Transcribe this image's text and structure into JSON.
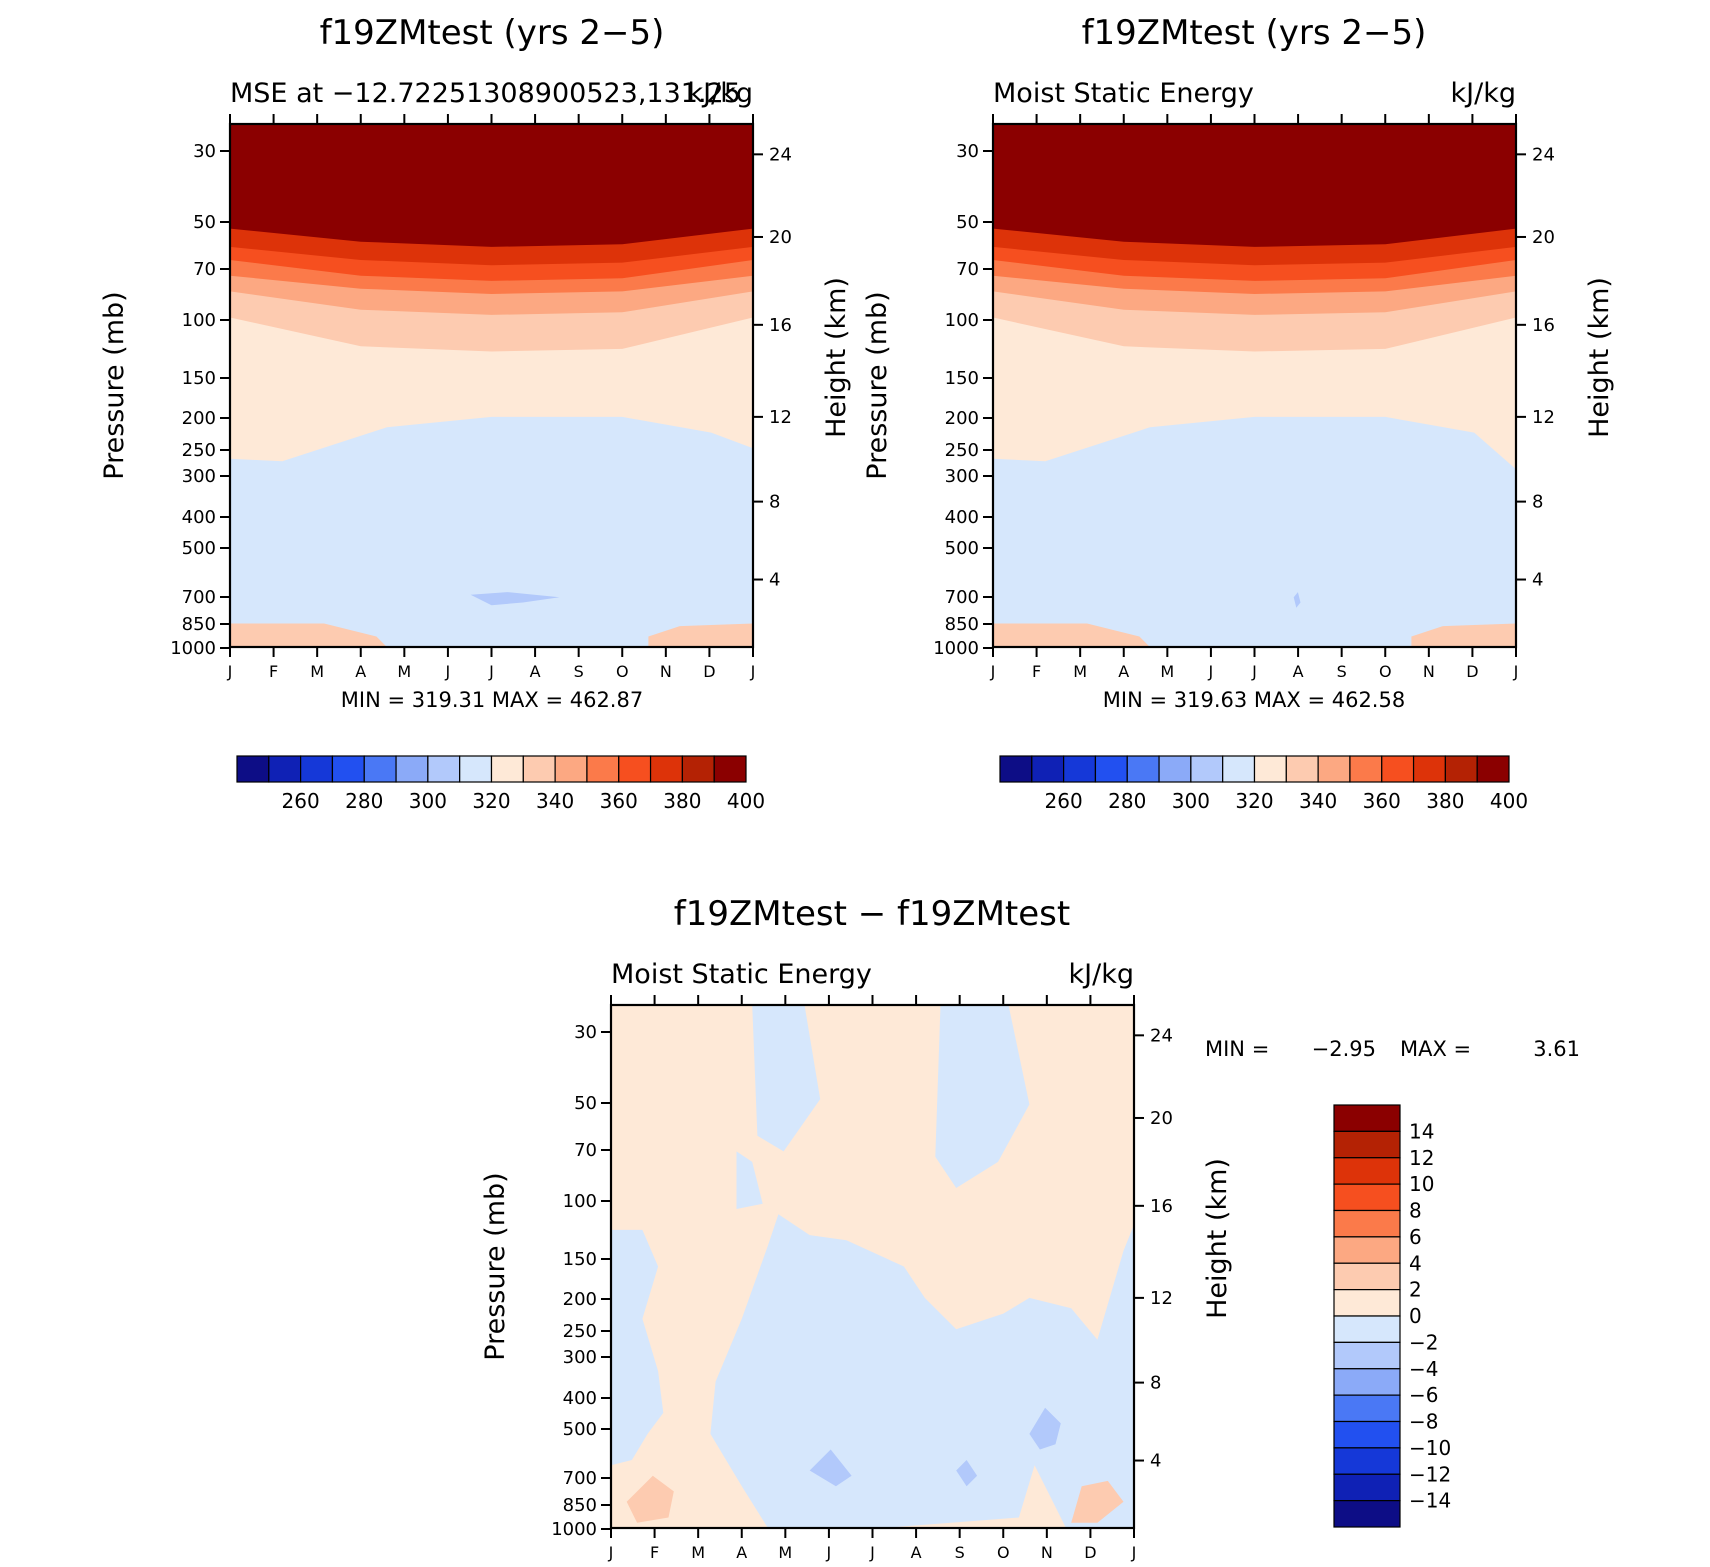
{
  "chart_data": [
    {
      "type": "heatmap",
      "title": "f19ZMtest (yrs 2−5)",
      "subtitle_left": "MSE at −12.72251308900523,131.25",
      "subtitle_right": "kJ/kg",
      "xlabel": "",
      "ylabel": "Pressure (mb)",
      "ylabel_right": "Height (km)",
      "x_ticks": [
        "J",
        "F",
        "M",
        "A",
        "M",
        "J",
        "J",
        "A",
        "S",
        "O",
        "N",
        "D",
        "J"
      ],
      "y_ticks": [
        "30",
        "50",
        "70",
        "100",
        "150",
        "200",
        "250",
        "300",
        "400",
        "500",
        "700",
        "850",
        "1000"
      ],
      "y_ticks_right": [
        "24",
        "20",
        "16",
        "12",
        "8",
        "4"
      ],
      "y_scale": "log",
      "ylim": [
        1000,
        25
      ],
      "min_max_text": "MIN = 319.31 MAX = 462.87",
      "colorbar": {
        "orientation": "horizontal",
        "labels": [
          "260",
          "280",
          "300",
          "320",
          "340",
          "360",
          "380",
          "400"
        ],
        "colors": [
          "#0d0d86",
          "#0f21b5",
          "#1538d8",
          "#2250f0",
          "#4a78f5",
          "#8baaf8",
          "#b2c9fb",
          "#d6e7fc",
          "#fee9d7",
          "#fdcbb0",
          "#fca882",
          "#fb7a4a",
          "#f64f1f",
          "#dd3309",
          "#b42204",
          "#8b0000"
        ]
      },
      "values": "layered kJ/kg field: 320-330 mid-troposphere (Apr-Oct), 330-340 lower/upper troposphere, rising through 400+ above ~50 mb"
    },
    {
      "type": "heatmap",
      "title": "f19ZMtest (yrs 2−5)",
      "subtitle_left": "Moist Static Energy",
      "subtitle_right": "kJ/kg",
      "xlabel": "",
      "ylabel": "Pressure (mb)",
      "ylabel_right": "Height (km)",
      "x_ticks": [
        "J",
        "F",
        "M",
        "A",
        "M",
        "J",
        "J",
        "A",
        "S",
        "O",
        "N",
        "D",
        "J"
      ],
      "y_ticks": [
        "30",
        "50",
        "70",
        "100",
        "150",
        "200",
        "250",
        "300",
        "400",
        "500",
        "700",
        "850",
        "1000"
      ],
      "y_ticks_right": [
        "24",
        "20",
        "16",
        "12",
        "8",
        "4"
      ],
      "y_scale": "log",
      "ylim": [
        1000,
        25
      ],
      "min_max_text": "MIN = 319.63 MAX = 462.58",
      "colorbar": {
        "orientation": "horizontal",
        "labels": [
          "260",
          "280",
          "300",
          "320",
          "340",
          "360",
          "380",
          "400"
        ],
        "colors": [
          "#0d0d86",
          "#0f21b5",
          "#1538d8",
          "#2250f0",
          "#4a78f5",
          "#8baaf8",
          "#b2c9fb",
          "#d6e7fc",
          "#fee9d7",
          "#fdcbb0",
          "#fca882",
          "#fb7a4a",
          "#f64f1f",
          "#dd3309",
          "#b42204",
          "#8b0000"
        ]
      }
    },
    {
      "type": "heatmap",
      "title": "f19ZMtest − f19ZMtest",
      "subtitle_left": "Moist Static Energy",
      "subtitle_right": "kJ/kg",
      "xlabel": "",
      "ylabel": "Pressure (mb)",
      "ylabel_right": "Height (km)",
      "x_ticks": [
        "J",
        "F",
        "M",
        "A",
        "M",
        "J",
        "J",
        "A",
        "S",
        "O",
        "N",
        "D",
        "J"
      ],
      "y_ticks": [
        "30",
        "50",
        "70",
        "100",
        "150",
        "200",
        "250",
        "300",
        "400",
        "500",
        "700",
        "850",
        "1000"
      ],
      "y_ticks_right": [
        "24",
        "20",
        "16",
        "12",
        "8",
        "4"
      ],
      "y_scale": "log",
      "ylim": [
        1000,
        25
      ],
      "min_label": "MIN =",
      "min_value": "−2.95",
      "max_label": "MAX =",
      "max_value": "3.61",
      "colorbar": {
        "orientation": "vertical",
        "labels": [
          "14",
          "12",
          "10",
          "8",
          "6",
          "4",
          "2",
          "0",
          "−2",
          "−4",
          "−6",
          "−8",
          "−10",
          "−12",
          "−14"
        ],
        "colors": [
          "#8b0000",
          "#b42204",
          "#dd3309",
          "#f64f1f",
          "#fb7a4a",
          "#fca882",
          "#fdcbb0",
          "#fee9d7",
          "#d6e7fc",
          "#b2c9fb",
          "#8baaf8",
          "#4a78f5",
          "#2250f0",
          "#1538d8",
          "#0f21b5",
          "#0d0d86"
        ]
      }
    }
  ]
}
